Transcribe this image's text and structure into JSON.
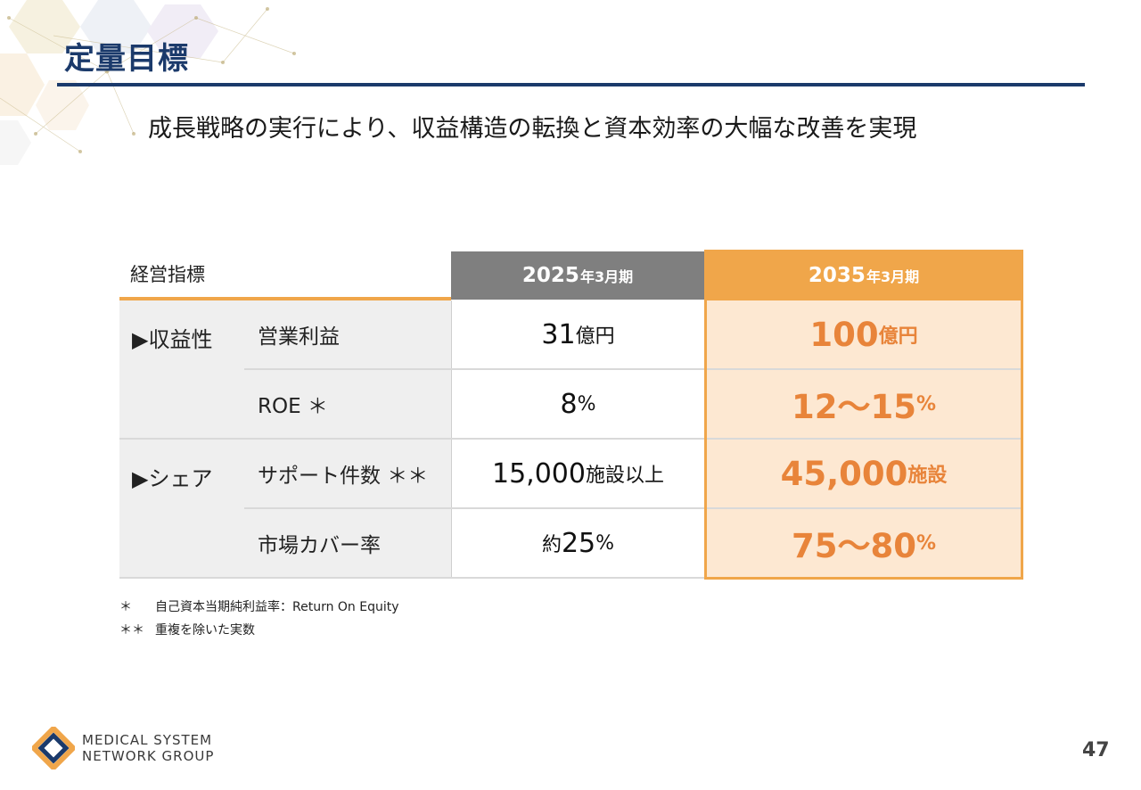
{
  "header": {
    "title": "定量目標",
    "subtitle": "成長戦略の実行により、収益構造の転換と資本効率の大幅な改善を実現"
  },
  "table": {
    "header_label": "経営指標",
    "col_2025": {
      "year": "2025",
      "suffix": "年3月期"
    },
    "col_2035": {
      "year": "2035",
      "suffix": "年3月期"
    },
    "groups": [
      {
        "label": "▶収益性"
      },
      {
        "label": "▶シェア"
      }
    ],
    "rows": [
      {
        "label": "営業利益",
        "v2025": {
          "prefix": "",
          "value": "31",
          "unit": "億円"
        },
        "v2035": {
          "value": "100",
          "unit": "億円"
        }
      },
      {
        "label": "ROE ＊",
        "v2025": {
          "prefix": "",
          "value": "8",
          "unit": "%"
        },
        "v2035": {
          "value": "12～15",
          "unit": "%"
        }
      },
      {
        "label": "サポート件数 ＊＊",
        "v2025": {
          "prefix": "",
          "value": "15,000",
          "unit": "施設以上"
        },
        "v2035": {
          "value": "45,000",
          "unit": "施設"
        }
      },
      {
        "label": "市場カバー率",
        "v2025": {
          "prefix": "約",
          "value": "25",
          "unit": "%"
        },
        "v2035": {
          "value": "75～80",
          "unit": "%"
        }
      }
    ]
  },
  "footnotes": [
    {
      "mark": "＊",
      "text": "自己資本当期純利益率：Return On Equity"
    },
    {
      "mark": "＊＊",
      "text": "重複を除いた実数"
    }
  ],
  "footer": {
    "logo_line1": "MEDICAL SYSTEM",
    "logo_line2": "NETWORK GROUP",
    "page_number": "47"
  },
  "colors": {
    "navy": "#1b3a6b",
    "orange": "#f0a64a",
    "orange_text": "#e8843a",
    "grey": "#7f7f7f"
  }
}
